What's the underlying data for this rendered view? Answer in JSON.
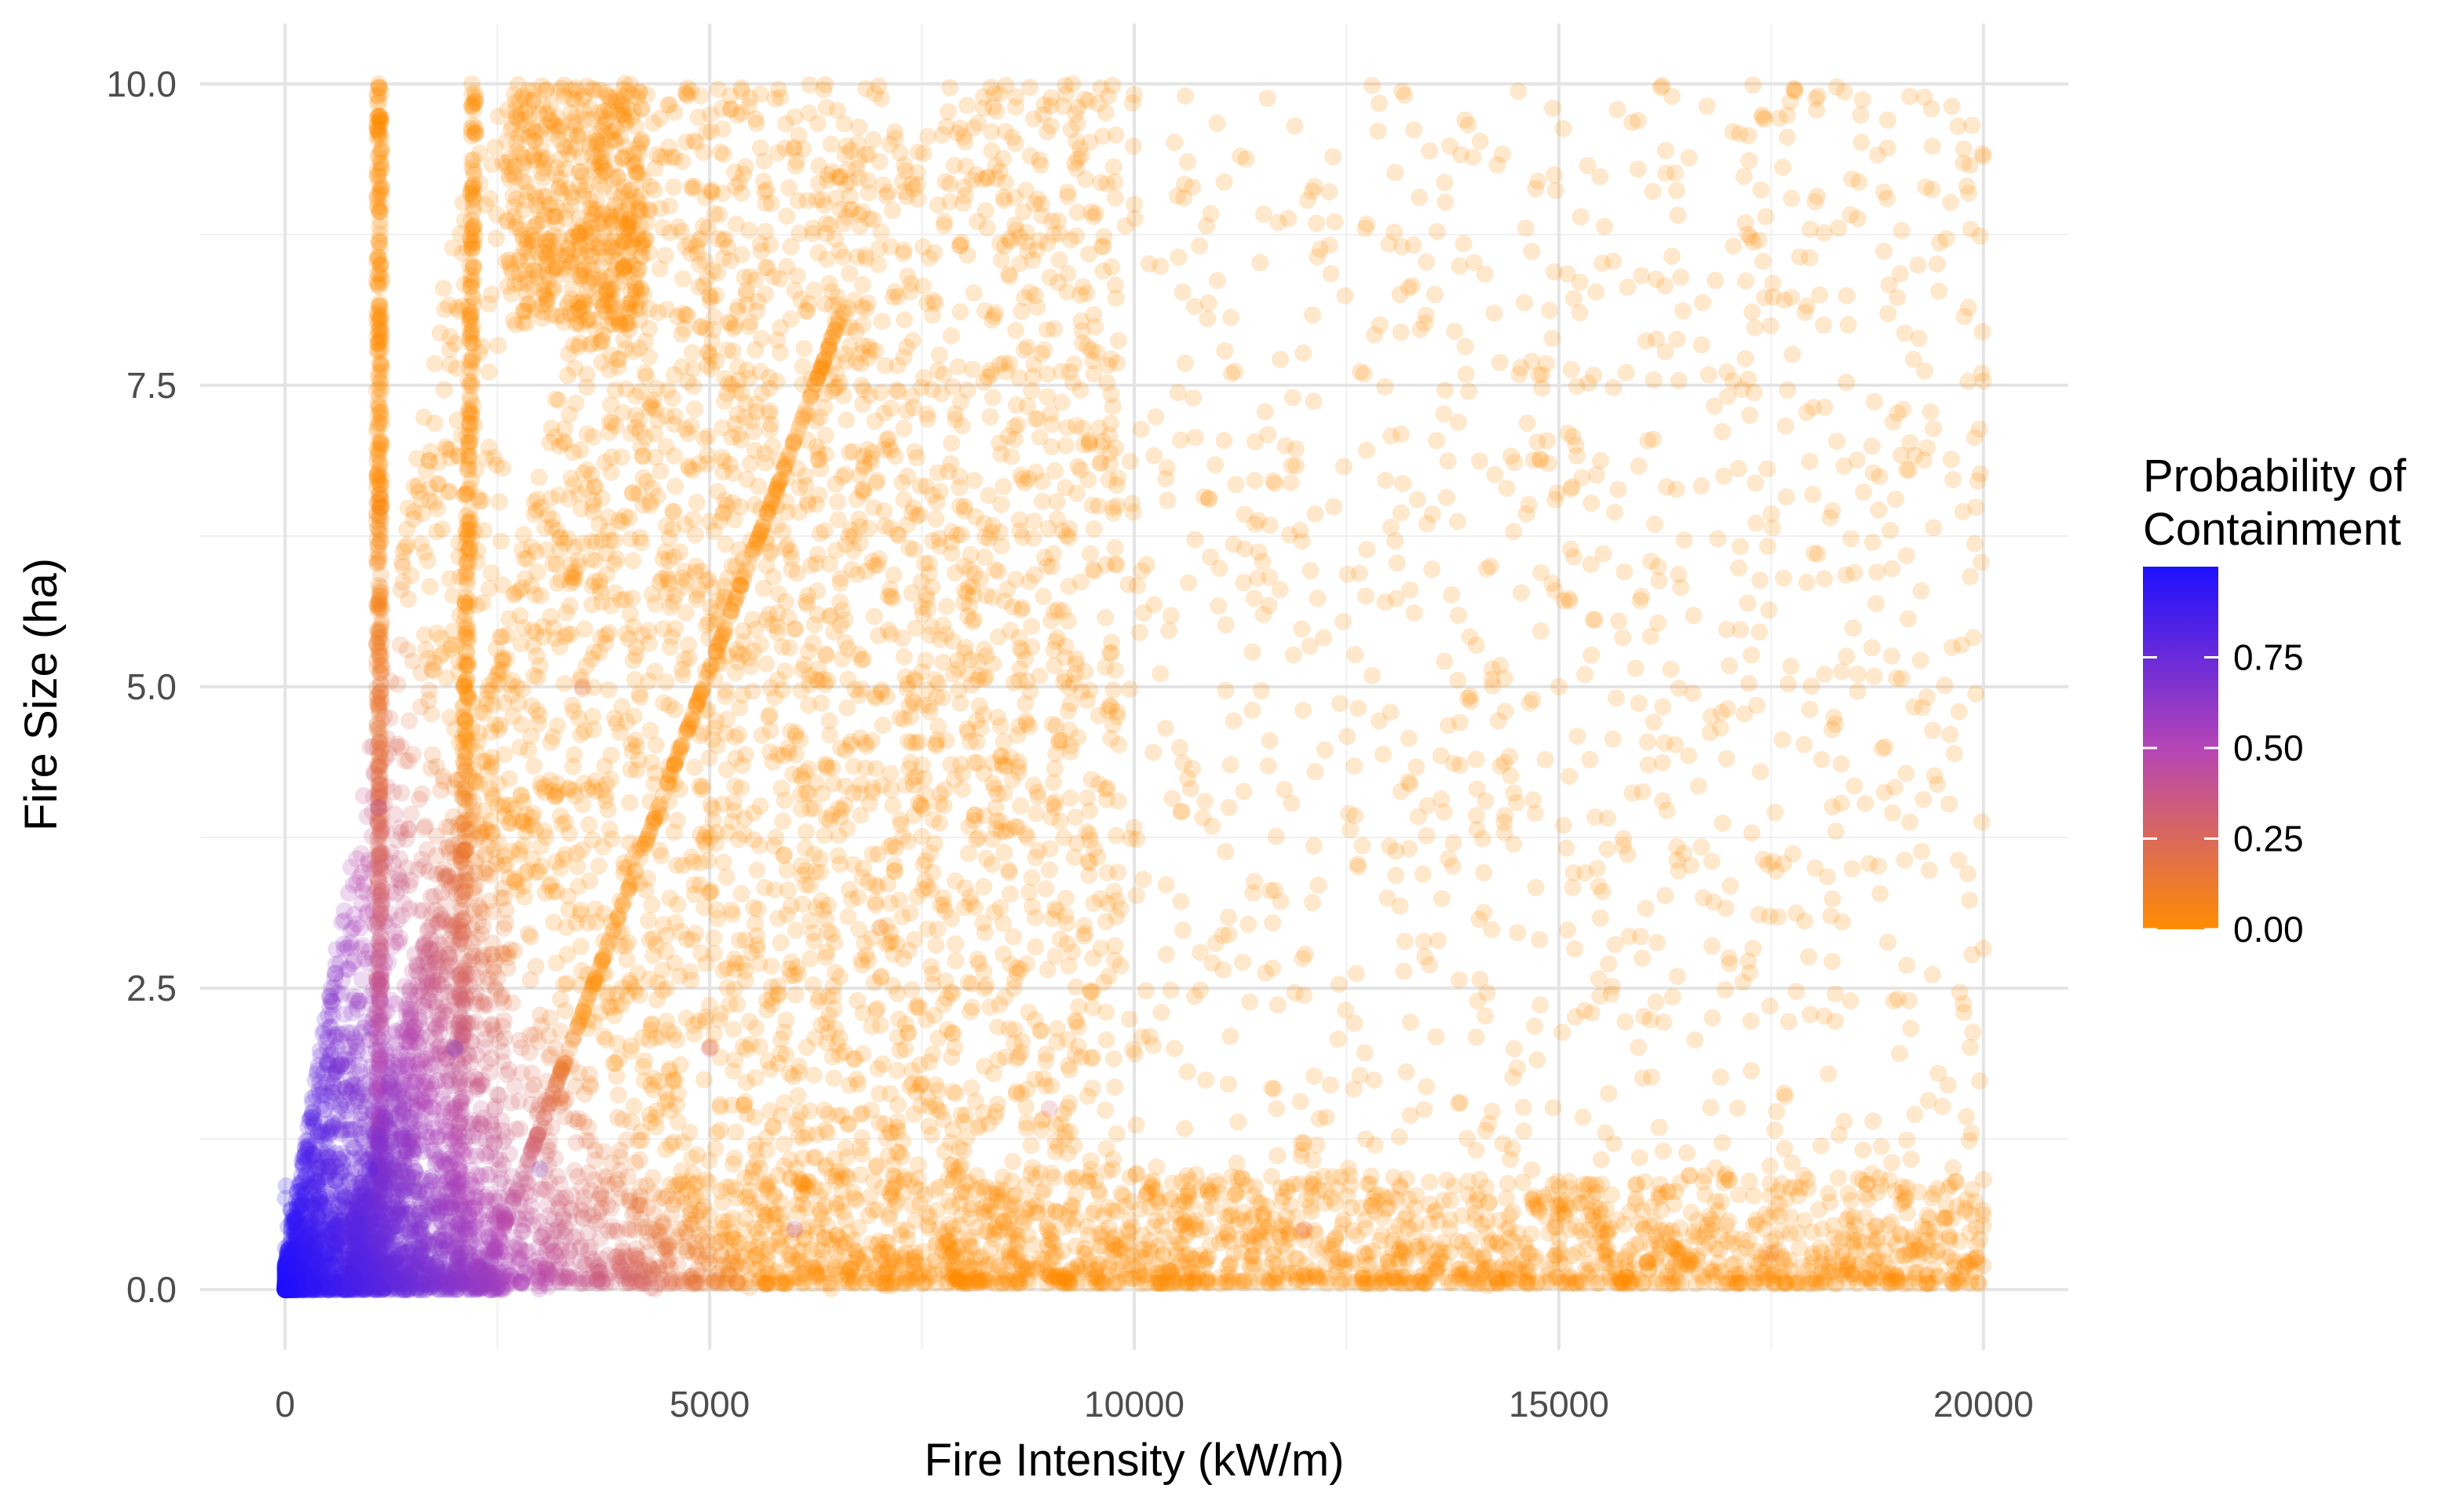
{
  "chart_data": {
    "type": "scatter",
    "xlabel": "Fire Intensity (kW/m)",
    "ylabel": "Fire Size (ha)",
    "xlim": [
      -1000,
      21000
    ],
    "ylim": [
      -0.5,
      10.5
    ],
    "x_ticks": [
      0,
      5000,
      10000,
      15000,
      20000
    ],
    "x_tick_labels": [
      "0",
      "5000",
      "10000",
      "15000",
      "20000"
    ],
    "x_minor_ticks": [
      2500,
      7500,
      12500,
      17500
    ],
    "y_ticks": [
      0,
      2.5,
      5,
      7.5,
      10
    ],
    "y_tick_labels": [
      "0.0",
      "2.5",
      "5.0",
      "7.5",
      "10.0"
    ],
    "y_minor_ticks": [
      1.25,
      3.75,
      6.25,
      8.75
    ],
    "grid": true,
    "color_variable": "Probability of Containment",
    "legend": {
      "title_lines": [
        "Probability of",
        "Containment"
      ],
      "placement": "right",
      "breaks": [
        0.75,
        0.5,
        0.25,
        0.0
      ],
      "break_labels": [
        "0.75",
        "0.50",
        "0.25",
        "0.00"
      ],
      "range": [
        0,
        1
      ],
      "low_color": "#FF8C00",
      "high_color": "#0000FF"
    },
    "point_opacity": 0.2,
    "point_density_description": "dense cloud from origin; low intensity/small size near 1.0 probability, high intensity/large size near 0.0",
    "sample_points": [
      {
        "x": 0,
        "y": 0.0,
        "p": 1.0
      },
      {
        "x": 500,
        "y": 0.3,
        "p": 0.98
      },
      {
        "x": 1000,
        "y": 1.0,
        "p": 0.9
      },
      {
        "x": 1100,
        "y": 4.0,
        "p": 0.6
      },
      {
        "x": 1100,
        "y": 10.0,
        "p": 0.0
      },
      {
        "x": 2200,
        "y": 10.0,
        "p": 0.0
      },
      {
        "x": 2000,
        "y": 2.0,
        "p": 0.85
      },
      {
        "x": 3000,
        "y": 1.0,
        "p": 0.75
      },
      {
        "x": 4000,
        "y": 10.0,
        "p": 0.0
      },
      {
        "x": 3500,
        "y": 5.0,
        "p": 0.3
      },
      {
        "x": 5000,
        "y": 2.0,
        "p": 0.45
      },
      {
        "x": 6000,
        "y": 0.5,
        "p": 0.6
      },
      {
        "x": 7000,
        "y": 3.0,
        "p": 0.1
      },
      {
        "x": 8000,
        "y": 6.0,
        "p": 0.0
      },
      {
        "x": 9000,
        "y": 1.5,
        "p": 0.3
      },
      {
        "x": 10000,
        "y": 9.0,
        "p": 0.0
      },
      {
        "x": 12000,
        "y": 0.5,
        "p": 0.3
      },
      {
        "x": 15000,
        "y": 5.0,
        "p": 0.0
      },
      {
        "x": 17500,
        "y": 0.3,
        "p": 0.15
      },
      {
        "x": 20000,
        "y": 0.2,
        "p": 0.05
      },
      {
        "x": 20000,
        "y": 9.4,
        "p": 0.0
      }
    ]
  }
}
